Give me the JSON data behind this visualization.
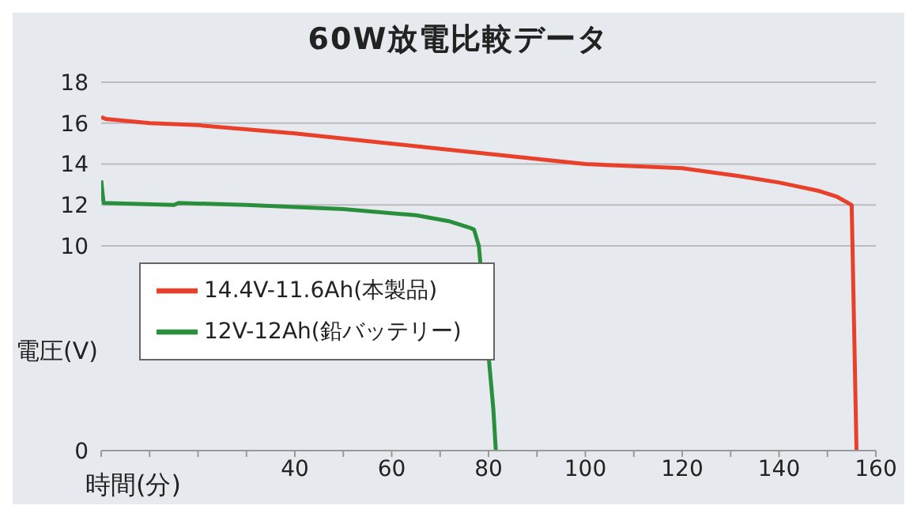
{
  "chart_data": {
    "type": "line",
    "title": "60W放電比較データ",
    "xlabel": "時間(分)",
    "ylabel": "電圧(V)",
    "xlim": [
      0,
      160
    ],
    "ylim": [
      0,
      18
    ],
    "xticks": [
      {
        "value": 0,
        "label": null
      },
      {
        "value": 10,
        "label": null
      },
      {
        "value": 20,
        "label": null
      },
      {
        "value": 30,
        "label": null
      },
      40,
      {
        "value": 50,
        "label": null
      },
      60,
      {
        "value": 70,
        "label": null
      },
      80,
      {
        "value": 90,
        "label": null
      },
      100,
      {
        "value": 110,
        "label": null
      },
      120,
      {
        "value": 130,
        "label": null
      },
      140,
      {
        "value": 150,
        "label": null
      },
      160
    ],
    "yticks": [
      0,
      10,
      12,
      14,
      16,
      18
    ],
    "grid": "y",
    "legend": "bottom left",
    "series": [
      {
        "name": "14.4V-11.6Ah(本製品)",
        "color": "#e8402a",
        "x": [
          0,
          1,
          10,
          20,
          40,
          60,
          72,
          100,
          120,
          132,
          140,
          148,
          152,
          155,
          156
        ],
        "values": [
          16.3,
          16.2,
          16.0,
          15.9,
          15.5,
          15.0,
          14.7,
          14.0,
          13.8,
          13.4,
          13.1,
          12.7,
          12.4,
          12.0,
          0
        ]
      },
      {
        "name": "12V-12Ah(鉛バッテリー)",
        "color": "#2a8f3c",
        "x": [
          0,
          0.5,
          15,
          16,
          30,
          50,
          65,
          72,
          76,
          77,
          78,
          81,
          81.5
        ],
        "values": [
          13.2,
          12.1,
          12.0,
          12.1,
          12.0,
          11.8,
          11.5,
          11.2,
          10.9,
          10.8,
          10.0,
          2.0,
          0
        ]
      }
    ]
  }
}
